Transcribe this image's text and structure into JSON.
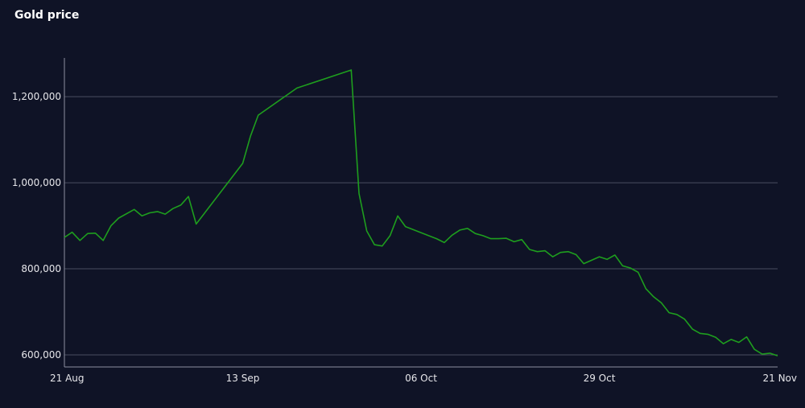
{
  "chart_data": {
    "type": "line",
    "title": "Gold price",
    "xlabel": "",
    "ylabel": "",
    "x_tick_labels": [
      "21 Aug",
      "13 Sep",
      "06 Oct",
      "29 Oct",
      "21 Nov"
    ],
    "y_tick_labels": [
      "600,000",
      "800,000",
      "1,000,000",
      "1,200,000"
    ],
    "y_ticks": [
      600000,
      800000,
      1000000,
      1200000
    ],
    "xlim": [
      "2023-08-21",
      "2023-11-21"
    ],
    "ylim": [
      572000,
      1290000
    ],
    "grid": "horizontal",
    "legend": "none",
    "colors": {
      "background": "#0f1326",
      "line": "#1e9e1e",
      "grid": "#4a4e60",
      "axis": "#8c8fa0",
      "text": "#e6e6ea"
    },
    "series": [
      {
        "x": [
          "2023-08-21",
          "2023-08-22",
          "2023-08-23",
          "2023-08-24",
          "2023-08-25",
          "2023-08-26",
          "2023-08-27",
          "2023-08-28",
          "2023-08-30",
          "2023-08-31",
          "2023-09-01",
          "2023-09-02",
          "2023-09-03",
          "2023-09-04",
          "2023-09-05",
          "2023-09-06",
          "2023-09-07",
          "2023-09-13",
          "2023-09-14",
          "2023-09-15",
          "2023-09-20",
          "2023-09-27",
          "2023-09-28",
          "2023-09-29",
          "2023-09-30",
          "2023-10-01",
          "2023-10-02",
          "2023-10-03",
          "2023-10-04",
          "2023-10-05",
          "2023-10-06",
          "2023-10-07",
          "2023-10-08",
          "2023-10-09",
          "2023-10-10",
          "2023-10-11",
          "2023-10-12",
          "2023-10-13",
          "2023-10-14",
          "2023-10-15",
          "2023-10-16",
          "2023-10-17",
          "2023-10-18",
          "2023-10-19",
          "2023-10-20",
          "2023-10-21",
          "2023-10-22",
          "2023-10-23",
          "2023-10-24",
          "2023-10-25",
          "2023-10-26",
          "2023-10-27",
          "2023-10-28",
          "2023-10-29",
          "2023-10-30",
          "2023-10-31",
          "2023-11-01",
          "2023-11-02",
          "2023-11-03",
          "2023-11-04",
          "2023-11-05",
          "2023-11-06",
          "2023-11-07",
          "2023-11-08",
          "2023-11-09",
          "2023-11-10",
          "2023-11-11",
          "2023-11-12",
          "2023-11-13",
          "2023-11-14",
          "2023-11-15",
          "2023-11-16",
          "2023-11-17",
          "2023-11-18",
          "2023-11-19",
          "2023-11-20",
          "2023-11-21"
        ],
        "y": [
          873000,
          885000,
          866000,
          882000,
          883000,
          866000,
          900000,
          918000,
          938000,
          923000,
          930000,
          933000,
          927000,
          940000,
          948000,
          968000,
          904000,
          1045000,
          1108000,
          1157000,
          1220000,
          1262000,
          975000,
          888000,
          856000,
          853000,
          877000,
          923000,
          898000,
          891000,
          884000,
          877000,
          870000,
          861000,
          878000,
          890000,
          894000,
          882000,
          877000,
          870000,
          870000,
          871000,
          863000,
          868000,
          845000,
          840000,
          842000,
          828000,
          838000,
          840000,
          833000,
          812000,
          820000,
          828000,
          822000,
          832000,
          807000,
          802000,
          792000,
          754000,
          735000,
          721000,
          698000,
          694000,
          683000,
          660000,
          650000,
          648000,
          641000,
          626000,
          636000,
          629000,
          642000,
          613000,
          602000,
          604000,
          598000
        ]
      }
    ]
  }
}
